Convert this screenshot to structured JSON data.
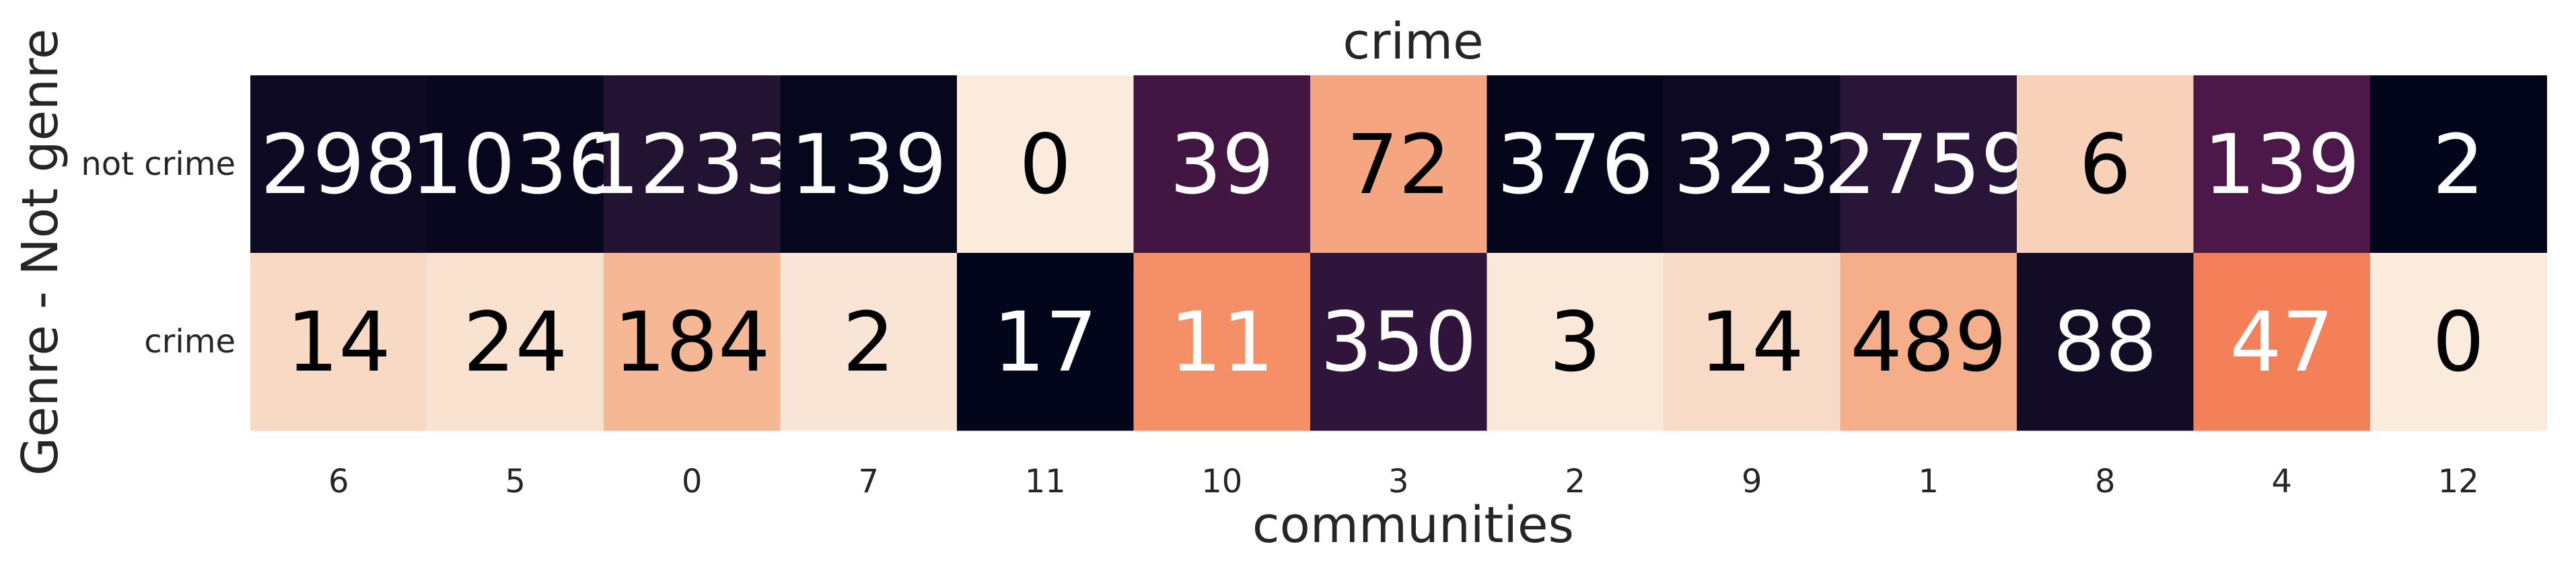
{
  "chart_data": {
    "type": "heatmap",
    "title": "crime",
    "xlabel": "communities",
    "ylabel": "Genre - Not genre",
    "x_categories": [
      "6",
      "5",
      "0",
      "7",
      "11",
      "10",
      "3",
      "2",
      "9",
      "1",
      "8",
      "4",
      "12"
    ],
    "y_categories": [
      "not crime",
      "crime"
    ],
    "values": [
      [
        298,
        1036,
        1233,
        139,
        0,
        39,
        72,
        376,
        323,
        2759,
        6,
        139,
        2
      ],
      [
        14,
        24,
        184,
        2,
        17,
        11,
        350,
        3,
        14,
        489,
        88,
        47,
        0
      ]
    ],
    "normalization": "per-column",
    "colormap": "rocket",
    "colorbar": false,
    "grid": false
  }
}
